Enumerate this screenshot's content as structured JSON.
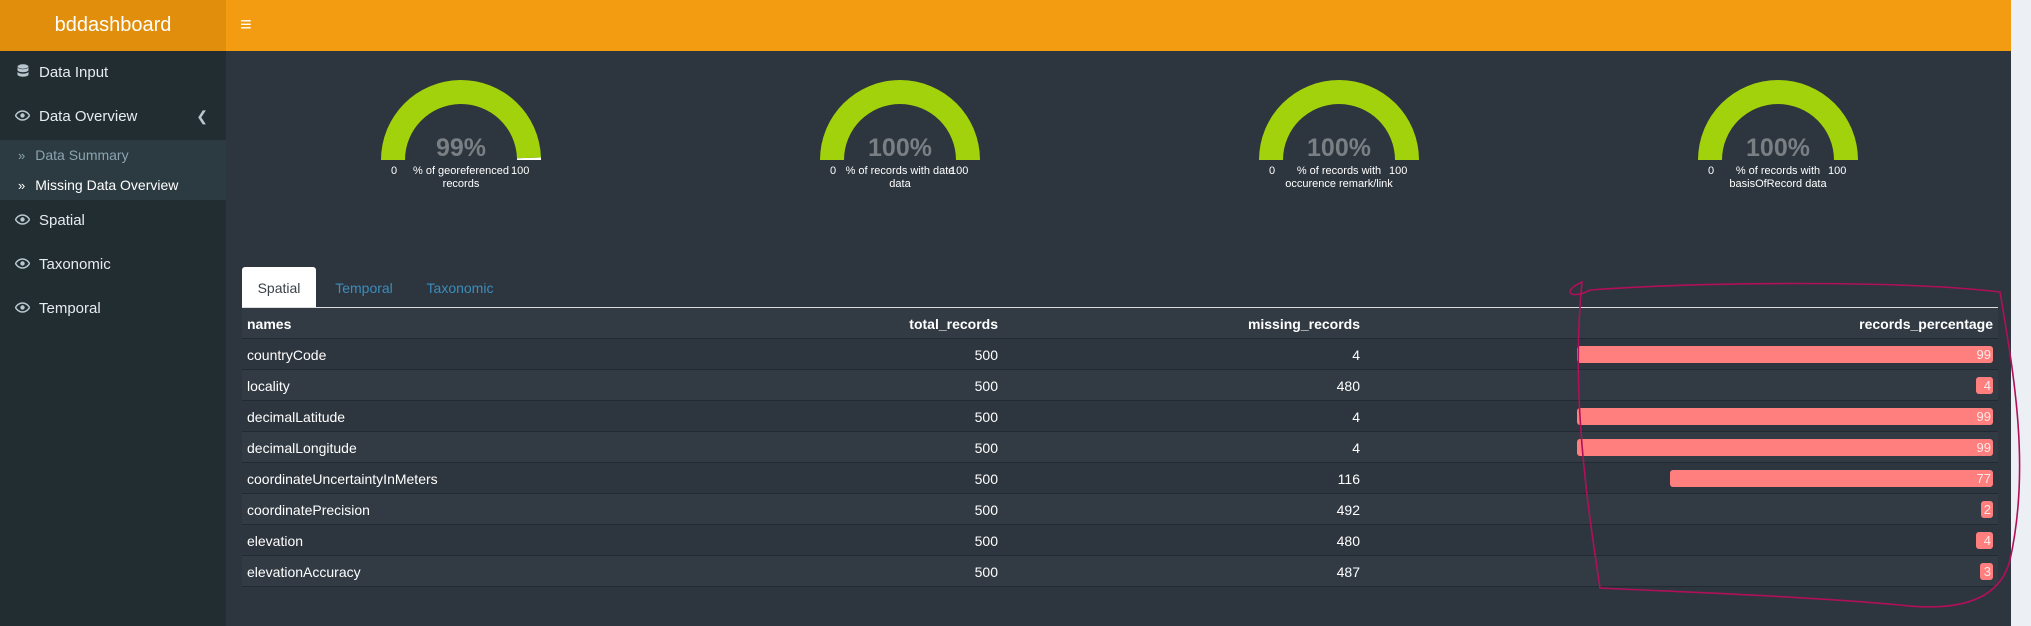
{
  "app": {
    "title": "bddashboard",
    "menu_icon": "hamburger-icon"
  },
  "sidebar": {
    "items": [
      {
        "label": "Data Input",
        "icon": "database-icon"
      },
      {
        "label": "Data Overview",
        "icon": "eye-icon"
      },
      {
        "label": "Spatial",
        "icon": "eye-icon"
      },
      {
        "label": "Taxonomic",
        "icon": "eye-icon"
      },
      {
        "label": "Temporal",
        "icon": "eye-icon"
      }
    ],
    "subitems": [
      {
        "label": "Data Summary",
        "icon": "double-chevron-right-icon"
      },
      {
        "label": "Missing Data Overview",
        "icon": "double-chevron-right-icon"
      }
    ]
  },
  "gauges": [
    {
      "value": 99,
      "value_text": "99%",
      "min": "0",
      "max": "100",
      "label": "% of georeferenced records"
    },
    {
      "value": 100,
      "value_text": "100%",
      "min": "0",
      "max": "100",
      "label": "% of records with date data"
    },
    {
      "value": 100,
      "value_text": "100%",
      "min": "0",
      "max": "100",
      "label": "% of records with occurence remark/link"
    },
    {
      "value": 100,
      "value_text": "100%",
      "min": "0",
      "max": "100",
      "label": "% of records with basisOfRecord data"
    }
  ],
  "tabs": [
    {
      "label": "Spatial",
      "active": true
    },
    {
      "label": "Temporal",
      "active": false
    },
    {
      "label": "Taxonomic",
      "active": false
    }
  ],
  "table": {
    "columns": [
      "names",
      "total_records",
      "missing_records",
      "records_percentage"
    ],
    "rows": [
      {
        "name": "countryCode",
        "total": "500",
        "missing": "4",
        "pct": 99
      },
      {
        "name": "locality",
        "total": "500",
        "missing": "480",
        "pct": 4
      },
      {
        "name": "decimalLatitude",
        "total": "500",
        "missing": "4",
        "pct": 99
      },
      {
        "name": "decimalLongitude",
        "total": "500",
        "missing": "4",
        "pct": 99
      },
      {
        "name": "coordinateUncertaintyInMeters",
        "total": "500",
        "missing": "116",
        "pct": 77
      },
      {
        "name": "coordinatePrecision",
        "total": "500",
        "missing": "492",
        "pct": 2
      },
      {
        "name": "elevation",
        "total": "500",
        "missing": "480",
        "pct": 4
      },
      {
        "name": "elevationAccuracy",
        "total": "500",
        "missing": "487",
        "pct": 3
      }
    ]
  },
  "colors": {
    "header": "#f39c12",
    "logo": "#e08e0b",
    "sidebar": "#222d32",
    "body": "#2d353e",
    "gauge_fill": "#a1d20b",
    "bar": "#ff7f7f",
    "link": "#3c8dbc",
    "annotation": "#b0105a"
  }
}
